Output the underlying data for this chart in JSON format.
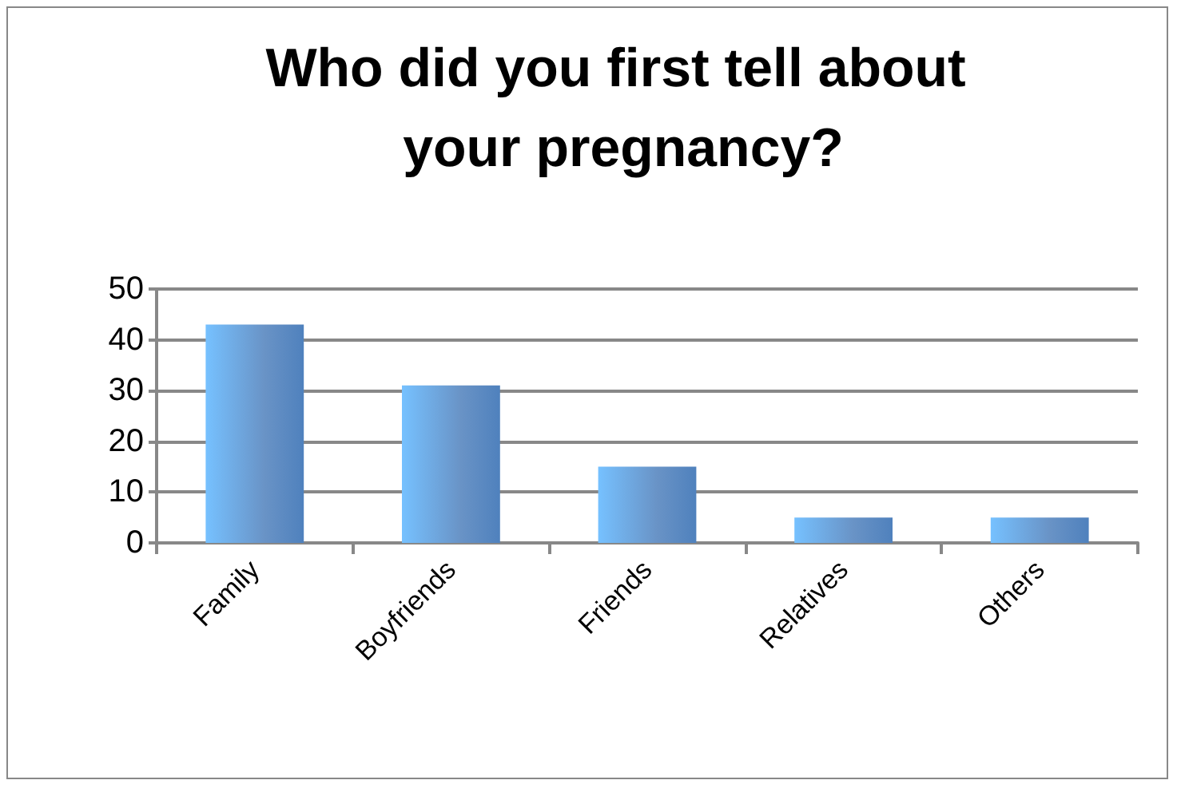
{
  "chart_data": {
    "type": "bar",
    "title": "Who did you first tell about your pregnancy?",
    "categories": [
      "Family",
      "Boyfriends",
      "Friends",
      "Relatives",
      "Others"
    ],
    "values": [
      43,
      31,
      15,
      5,
      5
    ],
    "color": "#4f81bd",
    "ylim": [
      0,
      50
    ],
    "yticks": [
      0,
      10,
      20,
      30,
      40,
      50
    ],
    "grid": "y"
  }
}
